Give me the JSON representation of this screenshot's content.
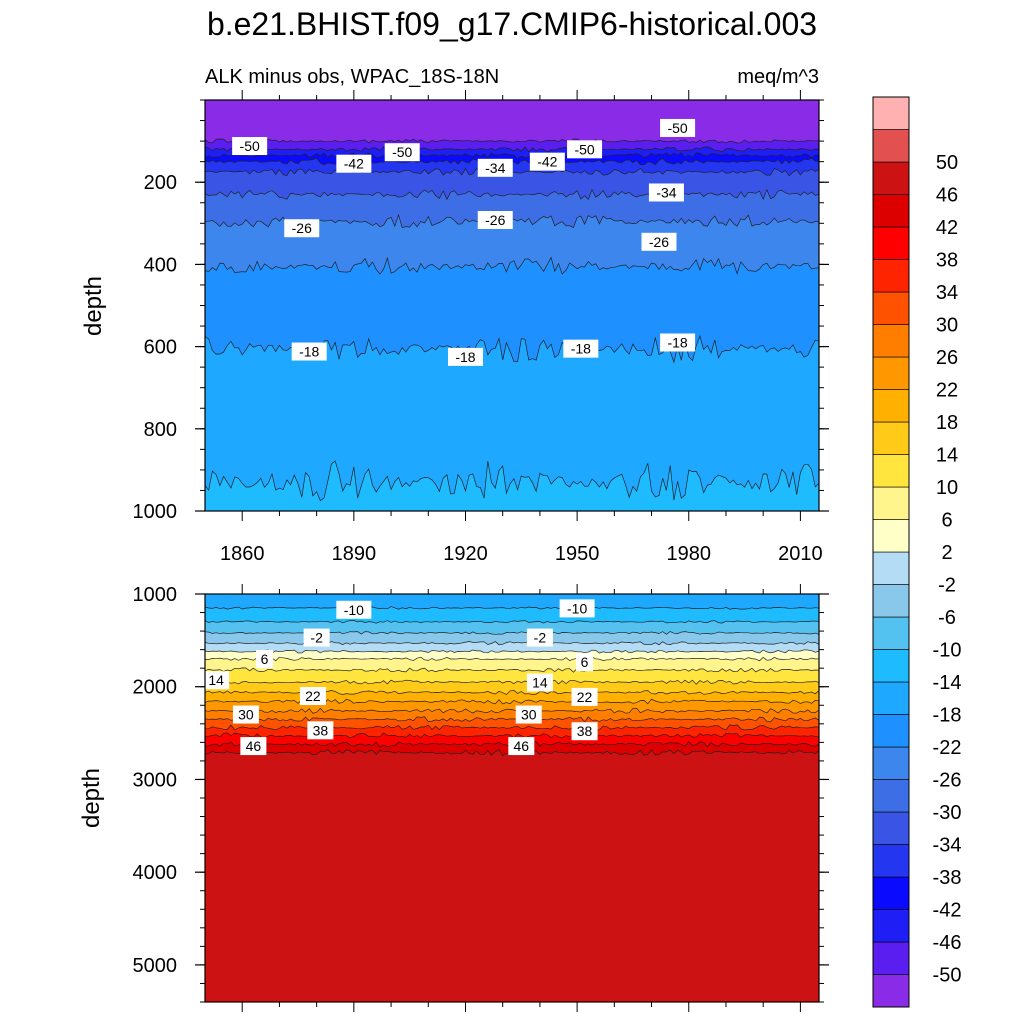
{
  "chart_data": {
    "type": "heatmap",
    "title": "b.e21.BHIST.f09_g17.CMIP6-historical.003",
    "subtitle_left": "ALK minus obs, WPAC_18S-18N",
    "subtitle_right": "meq/m^3",
    "ylabel": "depth",
    "x_ticks": [
      1860,
      1890,
      1920,
      1950,
      1980,
      2010
    ],
    "xlim": [
      1850,
      2015
    ],
    "panels": [
      {
        "name": "upper",
        "ylim": [
          0,
          1000
        ],
        "y_ticks": [
          200,
          400,
          600,
          800,
          1000
        ],
        "contours": [
          {
            "level": -50,
            "depth": 100
          },
          {
            "level": -46,
            "depth": 120
          },
          {
            "level": -42,
            "depth": 135
          },
          {
            "level": -38,
            "depth": 150
          },
          {
            "level": -34,
            "depth": 175
          },
          {
            "level": -30,
            "depth": 230
          },
          {
            "level": -26,
            "depth": 295
          },
          {
            "level": -22,
            "depth": 405
          },
          {
            "level": -18,
            "depth": 605
          },
          {
            "level": -14,
            "depth": 930
          }
        ],
        "labels": [
          {
            "text": "-50",
            "year": 1862,
            "depth": 112
          },
          {
            "text": "-42",
            "year": 1890,
            "depth": 155
          },
          {
            "text": "-50",
            "year": 1903,
            "depth": 127
          },
          {
            "text": "-34",
            "year": 1928,
            "depth": 165
          },
          {
            "text": "-42",
            "year": 1942,
            "depth": 150
          },
          {
            "text": "-50",
            "year": 1952,
            "depth": 120
          },
          {
            "text": "-50",
            "year": 1977,
            "depth": 68
          },
          {
            "text": "-34",
            "year": 1974,
            "depth": 225
          },
          {
            "text": "-26",
            "year": 1876,
            "depth": 312
          },
          {
            "text": "-26",
            "year": 1928,
            "depth": 292
          },
          {
            "text": "-26",
            "year": 1972,
            "depth": 345
          },
          {
            "text": "-18",
            "year": 1878,
            "depth": 612
          },
          {
            "text": "-18",
            "year": 1920,
            "depth": 625
          },
          {
            "text": "-18",
            "year": 1951,
            "depth": 605
          },
          {
            "text": "-18",
            "year": 1977,
            "depth": 590
          }
        ]
      },
      {
        "name": "lower",
        "ylim": [
          1000,
          5400
        ],
        "y_ticks": [
          1000,
          2000,
          3000,
          4000,
          5000
        ],
        "contours": [
          {
            "level": -14,
            "depth": 1150
          },
          {
            "level": -10,
            "depth": 1300
          },
          {
            "level": -6,
            "depth": 1420
          },
          {
            "level": -2,
            "depth": 1530
          },
          {
            "level": 2,
            "depth": 1620
          },
          {
            "level": 6,
            "depth": 1700
          },
          {
            "level": 10,
            "depth": 1820
          },
          {
            "level": 14,
            "depth": 1950
          },
          {
            "level": 18,
            "depth": 2060
          },
          {
            "level": 22,
            "depth": 2160
          },
          {
            "level": 26,
            "depth": 2260
          },
          {
            "level": 30,
            "depth": 2350
          },
          {
            "level": 34,
            "depth": 2440
          },
          {
            "level": 38,
            "depth": 2530
          },
          {
            "level": 42,
            "depth": 2620
          },
          {
            "level": 46,
            "depth": 2710
          }
        ],
        "labels": [
          {
            "text": "-10",
            "year": 1890,
            "depth": 1170
          },
          {
            "text": "-10",
            "year": 1950,
            "depth": 1155
          },
          {
            "text": "-2",
            "year": 1880,
            "depth": 1470
          },
          {
            "text": "-2",
            "year": 1940,
            "depth": 1470
          },
          {
            "text": "6",
            "year": 1866,
            "depth": 1700
          },
          {
            "text": "6",
            "year": 1952,
            "depth": 1735
          },
          {
            "text": "14",
            "year": 1853,
            "depth": 1930
          },
          {
            "text": "14",
            "year": 1940,
            "depth": 1955
          },
          {
            "text": "22",
            "year": 1879,
            "depth": 2100
          },
          {
            "text": "22",
            "year": 1952,
            "depth": 2110
          },
          {
            "text": "30",
            "year": 1861,
            "depth": 2300
          },
          {
            "text": "30",
            "year": 1937,
            "depth": 2300
          },
          {
            "text": "38",
            "year": 1881,
            "depth": 2470
          },
          {
            "text": "38",
            "year": 1952,
            "depth": 2480
          },
          {
            "text": "46",
            "year": 1863,
            "depth": 2640
          },
          {
            "text": "46",
            "year": 1935,
            "depth": 2640
          }
        ]
      }
    ],
    "colorbar": {
      "levels": [
        -50,
        -46,
        -42,
        -38,
        -34,
        -30,
        -26,
        -22,
        -18,
        -14,
        -10,
        -6,
        -2,
        2,
        6,
        10,
        14,
        18,
        22,
        26,
        30,
        34,
        38,
        42,
        46,
        50
      ],
      "labels": [
        "-50",
        "-46",
        "-42",
        "-38",
        "-34",
        "-30",
        "-26",
        "-22",
        "-18",
        "-14",
        "-10",
        "-6",
        "-2",
        "2",
        "6",
        "10",
        "14",
        "18",
        "22",
        "26",
        "30",
        "34",
        "38",
        "42",
        "46",
        "50"
      ],
      "colors": [
        "#8a2be8",
        "#5a1ef0",
        "#1e1ef5",
        "#0a0aff",
        "#2536f0",
        "#3a55e6",
        "#3e6ee6",
        "#3c86ee",
        "#1e90ff",
        "#1ea8ff",
        "#1ebbff",
        "#54c2f0",
        "#8ac8eb",
        "#b4dcf4",
        "#ffffc8",
        "#fff58c",
        "#ffe53e",
        "#ffcb18",
        "#ffb000",
        "#ff9800",
        "#ff7e00",
        "#ff5200",
        "#ff2400",
        "#ff0000",
        "#dd0000",
        "#cc1212",
        "#e25050",
        "#ffb0b0"
      ]
    }
  }
}
